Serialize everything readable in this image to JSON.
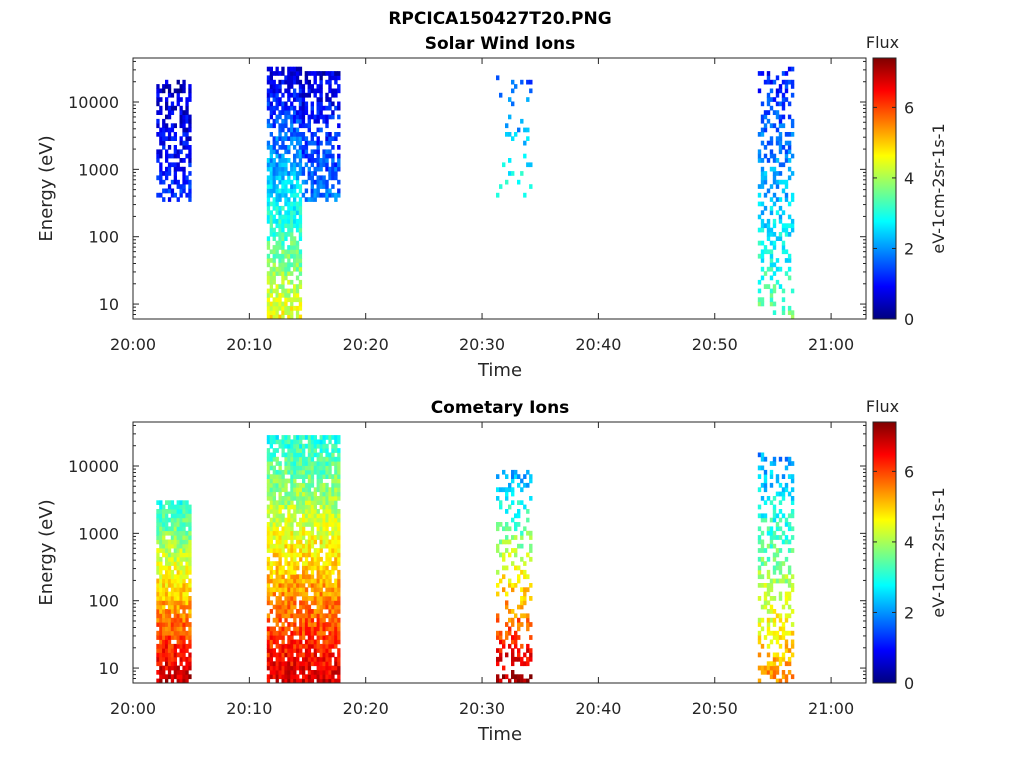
{
  "figure": {
    "title": "RPCICA150427T20.PNG"
  },
  "colors": {
    "colormap": [
      "#00007f",
      "#0000ff",
      "#007fff",
      "#00ffff",
      "#7fff7f",
      "#ffff00",
      "#ff7f00",
      "#ff0000",
      "#7f0000"
    ],
    "axis": "#262626"
  },
  "chart_data": [
    {
      "type": "heatmap",
      "title": "Solar Wind Ions",
      "xlabel": "Time",
      "ylabel": "Energy (eV)",
      "xlim": [
        "20:00",
        "21:03"
      ],
      "ylim": [
        6,
        45000
      ],
      "yscale": "log",
      "grid": false,
      "x_ticks": [
        "20:00",
        "20:10",
        "20:20",
        "20:30",
        "20:40",
        "20:50",
        "21:00"
      ],
      "y_ticks": [
        "10",
        "100",
        "1000",
        "10000"
      ],
      "colorbar": {
        "title": "Flux",
        "label": "eV-1cm-2sr-1s-1",
        "range": [
          0,
          7.4
        ],
        "ticks": [
          "0",
          "2",
          "4",
          "6"
        ]
      },
      "bursts": [
        {
          "start": "20:02",
          "end": "20:05",
          "energy_min": 330,
          "energy_max": 22000,
          "flux_min": 0.5,
          "flux_max": 1.2,
          "density": 0.55
        },
        {
          "start": "20:11.5",
          "end": "20:14.5",
          "energy_min": 6,
          "energy_max": 36000,
          "flux_min": 0.5,
          "flux_max": 4.6,
          "density": 0.75
        },
        {
          "start": "20:14.5",
          "end": "20:17.8",
          "energy_min": 330,
          "energy_max": 28000,
          "flux_min": 0.6,
          "flux_max": 1.8,
          "density": 0.6
        },
        {
          "start": "20:31.2",
          "end": "20:34.3",
          "energy_min": 360,
          "energy_max": 24000,
          "flux_min": 1.5,
          "flux_max": 3.0,
          "density": 0.12
        },
        {
          "start": "20:53.7",
          "end": "20:56.8",
          "energy_min": 6,
          "energy_max": 32000,
          "flux_min": 1.0,
          "flux_max": 3.5,
          "density": 0.35
        }
      ]
    },
    {
      "type": "heatmap",
      "title": "Cometary Ions",
      "xlabel": "Time",
      "ylabel": "Energy (eV)",
      "xlim": [
        "20:00",
        "21:03"
      ],
      "ylim": [
        6,
        45000
      ],
      "yscale": "log",
      "grid": false,
      "x_ticks": [
        "20:00",
        "20:10",
        "20:20",
        "20:30",
        "20:40",
        "20:50",
        "21:00"
      ],
      "y_ticks": [
        "10",
        "100",
        "1000",
        "10000"
      ],
      "colorbar": {
        "title": "Flux",
        "label": "eV-1cm-2sr-1s-1",
        "range": [
          0,
          7.4
        ],
        "ticks": [
          "0",
          "2",
          "4",
          "6"
        ]
      },
      "bursts": [
        {
          "start": "20:02",
          "end": "20:05",
          "energy_min": 6,
          "energy_max": 3000,
          "flux_min": 3.0,
          "flux_max": 7.0,
          "density": 0.9
        },
        {
          "start": "20:11.5",
          "end": "20:17.8",
          "energy_min": 6,
          "energy_max": 27000,
          "flux_min": 3.0,
          "flux_max": 6.8,
          "density": 0.85
        },
        {
          "start": "20:31.2",
          "end": "20:34.3",
          "energy_min": 6,
          "energy_max": 9000,
          "flux_min": 2.0,
          "flux_max": 7.2,
          "density": 0.4
        },
        {
          "start": "20:53.7",
          "end": "20:56.8",
          "energy_min": 6,
          "energy_max": 15000,
          "flux_min": 2.0,
          "flux_max": 5.5,
          "density": 0.4
        }
      ]
    }
  ]
}
